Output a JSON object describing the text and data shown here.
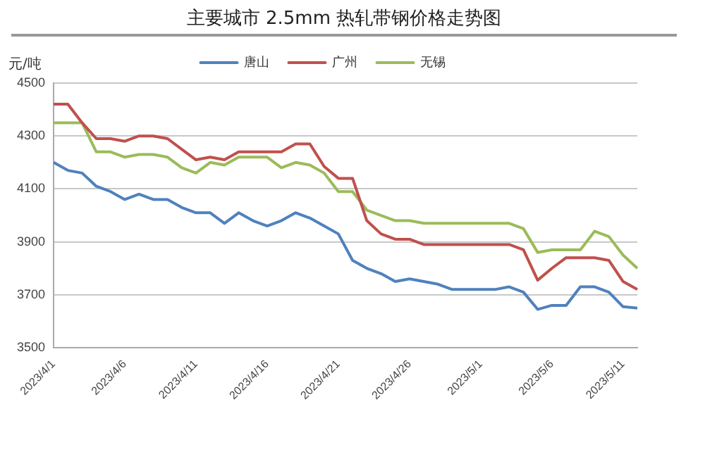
{
  "chart_data": {
    "type": "line",
    "title": "主要城市 2.5mm 热轧带钢价格走势图",
    "ylabel": "元/吨",
    "categories": [
      "2023/4/1",
      null,
      null,
      null,
      null,
      "2023/4/6",
      null,
      null,
      null,
      null,
      "2023/4/11",
      null,
      null,
      null,
      null,
      "2023/4/16",
      null,
      null,
      null,
      null,
      "2023/4/21",
      null,
      null,
      null,
      null,
      "2023/4/26",
      null,
      null,
      null,
      null,
      "2023/5/1",
      null,
      null,
      null,
      null,
      "2023/5/6",
      null,
      null,
      null,
      null,
      "2023/5/11",
      null
    ],
    "series": [
      {
        "name": "唐山",
        "color": "#4f81bd",
        "values": [
          4200,
          4170,
          4160,
          4110,
          4090,
          4060,
          4080,
          4060,
          4060,
          4030,
          4010,
          4010,
          3970,
          4010,
          3980,
          3960,
          3980,
          4010,
          3990,
          3960,
          3930,
          3830,
          3800,
          3780,
          3750,
          3760,
          3750,
          3740,
          3720,
          3720,
          3720,
          3720,
          3730,
          3710,
          3645,
          3660,
          3660,
          3730,
          3730,
          3710,
          3655,
          3650
        ]
      },
      {
        "name": "广州",
        "color": "#c0504d",
        "values": [
          4420,
          4420,
          4350,
          4290,
          4290,
          4280,
          4300,
          4300,
          4290,
          4250,
          4210,
          4220,
          4210,
          4240,
          4240,
          4240,
          4240,
          4270,
          4270,
          4185,
          4140,
          4140,
          3980,
          3930,
          3910,
          3910,
          3890,
          3890,
          3890,
          3890,
          3890,
          3890,
          3890,
          3870,
          3755,
          3800,
          3840,
          3840,
          3840,
          3830,
          3750,
          3720
        ]
      },
      {
        "name": "无锡",
        "color": "#9bbb59",
        "values": [
          4350,
          4350,
          4350,
          4240,
          4240,
          4220,
          4230,
          4230,
          4220,
          4180,
          4160,
          4200,
          4190,
          4220,
          4220,
          4220,
          4180,
          4200,
          4190,
          4160,
          4090,
          4090,
          4020,
          4000,
          3980,
          3980,
          3970,
          3970,
          3970,
          3970,
          3970,
          3970,
          3970,
          3950,
          3860,
          3870,
          3870,
          3870,
          3940,
          3920,
          3850,
          3800
        ]
      }
    ],
    "ylim": [
      3500,
      4500
    ],
    "yticks": [
      3500,
      3700,
      3900,
      4100,
      4300,
      4500
    ],
    "grid": "y",
    "legend": "top",
    "marker": "none"
  }
}
